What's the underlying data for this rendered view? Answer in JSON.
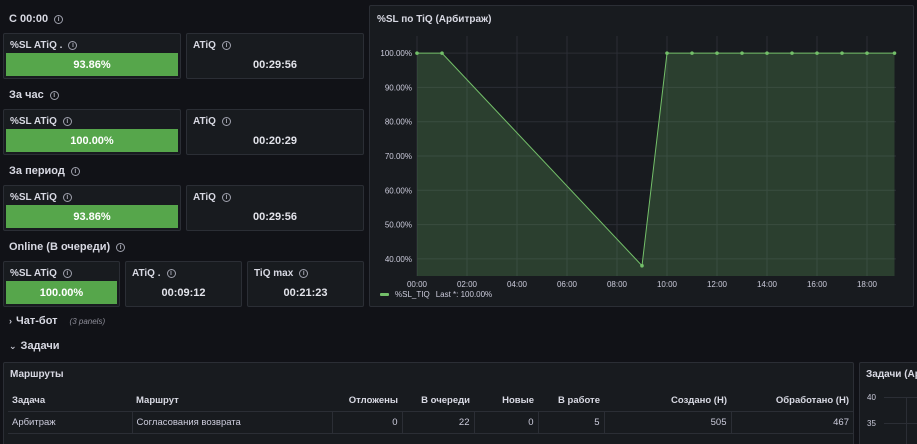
{
  "sections": {
    "since_midnight": "С 00:00",
    "last_hour": "За час",
    "period": "За период",
    "online": "Online (В очереди)"
  },
  "stats": {
    "s1_sl_title": "%SL ATiQ .",
    "s1_sl_value": "93.86%",
    "s1_sl_fraction": 0.9386,
    "s1_atiq_title": "ATiQ",
    "s1_atiq_value": "00:29:56",
    "s2_sl_title": "%SL ATiQ",
    "s2_sl_value": "100.00%",
    "s2_sl_fraction": 1.0,
    "s2_atiq_title": "ATiQ",
    "s2_atiq_value": "00:20:29",
    "s3_sl_title": "%SL ATiQ",
    "s3_sl_value": "93.86%",
    "s3_sl_fraction": 0.9386,
    "s3_atiq_title": "ATiQ",
    "s3_atiq_value": "00:29:56",
    "s4_sl_title": "%SL ATiQ",
    "s4_sl_value": "100.00%",
    "s4_sl_fraction": 1.0,
    "s4_atiq_title": "ATiQ .",
    "s4_atiq_value": "00:09:12",
    "s4_tiq_title": "TiQ max",
    "s4_tiq_value": "00:21:23"
  },
  "chart_panel": {
    "title": "%SL по TiQ (Арбитраж)",
    "legend_name": "%SL_TIQ",
    "legend_last": "Last *: 100.00%"
  },
  "chart_data": {
    "type": "area",
    "title": "%SL по TiQ (Арбитраж)",
    "x_ticks": [
      "00:00",
      "02:00",
      "04:00",
      "06:00",
      "08:00",
      "10:00",
      "12:00",
      "14:00",
      "16:00",
      "18:00"
    ],
    "y_ticks": [
      "40.00%",
      "50.00%",
      "60.00%",
      "70.00%",
      "80.00%",
      "90.00%",
      "100.00%"
    ],
    "ylim": [
      35,
      105
    ],
    "xlim_hours": [
      0,
      18.6
    ],
    "grid": true,
    "legend_placement": "bottom-left",
    "series": [
      {
        "name": "%SL_TIQ",
        "color": "#73bf69",
        "points": [
          [
            0.0,
            100
          ],
          [
            1.0,
            100
          ],
          [
            9.0,
            38.0
          ],
          [
            10.0,
            100
          ],
          [
            11.0,
            100
          ],
          [
            12.0,
            100
          ],
          [
            13.0,
            100
          ],
          [
            14.0,
            100
          ],
          [
            15.0,
            100
          ],
          [
            16.0,
            100
          ],
          [
            17.0,
            100
          ],
          [
            18.0,
            100
          ],
          [
            19.1,
            100
          ]
        ]
      }
    ]
  },
  "rows": {
    "chatbot_label": "Чат-бот",
    "chatbot_sub": "(3 panels)",
    "tasks_label": "Задачи"
  },
  "routes_table": {
    "title": "Маршруты",
    "headers": [
      "Задача",
      "Маршрут",
      "Отложены",
      "В очереди",
      "Новые",
      "В работе",
      "Создано (Н)",
      "Обработано (Н)"
    ],
    "rows": [
      [
        "Арбитраж",
        "Согласования возврата",
        "0",
        "22",
        "0",
        "5",
        "505",
        "467"
      ]
    ]
  },
  "side_panel": {
    "title": "Задачи (Ар",
    "y_ticks": [
      "40",
      "35"
    ]
  },
  "colors": {
    "background": "#111217",
    "panel": "#181b1f",
    "border": "#2b2e35",
    "green": "#56a64b",
    "series": "#73bf69"
  }
}
